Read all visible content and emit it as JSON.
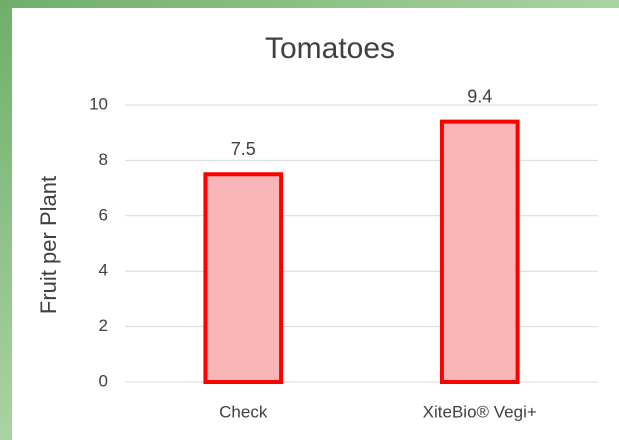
{
  "chart_data": {
    "type": "bar",
    "title": "Tomatoes",
    "ylabel": "Fruit per Plant",
    "categories": [
      "Check",
      "XiteBio® Vegi+"
    ],
    "values": [
      7.5,
      9.4
    ],
    "color": "#f7b5b5",
    "edgecolor": "#ff0000",
    "ylim": [
      0,
      10
    ],
    "yticks": [
      0,
      2,
      4,
      6,
      8,
      10
    ],
    "grid": true
  }
}
